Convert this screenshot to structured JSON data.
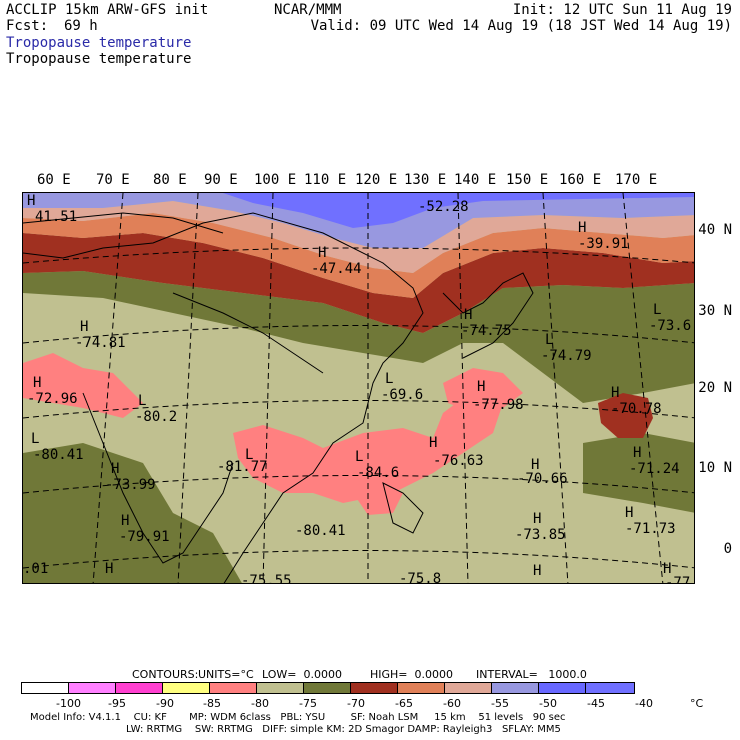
{
  "header": {
    "model": "ACCLIP 15km ARW-GFS init",
    "fcst_label": "Fcst:",
    "fcst_value": "69 h",
    "org": "NCAR/MMM",
    "init": "Init: 12 UTC Sun 11 Aug 19",
    "valid": "Valid: 09 UTC Wed 14 Aug 19 (18 JST Wed 14 Aug 19)",
    "field1": "Tropopause temperature",
    "field2": "Tropopause temperature"
  },
  "longitudes": [
    "60 E",
    "70 E",
    "80 E",
    "90 E",
    "100 E",
    "110 E",
    "120 E",
    "130 E",
    "140 E",
    "150 E",
    "160 E",
    "170 E"
  ],
  "latitudes": [
    "40 N",
    "30 N",
    "20 N",
    "10 N",
    "0"
  ],
  "labels": [
    {
      "id": "h1",
      "text": "H"
    },
    {
      "id": "v1",
      "text": "41.51"
    },
    {
      "id": "h2",
      "text": "H"
    },
    {
      "id": "v2",
      "text": "-47.44"
    },
    {
      "id": "v3",
      "text": "-52.28"
    },
    {
      "id": "h4",
      "text": "H"
    },
    {
      "id": "v4",
      "text": "-39.91"
    },
    {
      "id": "h5",
      "text": "H"
    },
    {
      "id": "v5",
      "text": "-74.81"
    },
    {
      "id": "h6",
      "text": "H"
    },
    {
      "id": "v6",
      "text": "-74.75"
    },
    {
      "id": "l7",
      "text": "L"
    },
    {
      "id": "v7",
      "text": "-74.79"
    },
    {
      "id": "l8",
      "text": "L"
    },
    {
      "id": "v8",
      "text": "-73.6"
    },
    {
      "id": "h9",
      "text": "H"
    },
    {
      "id": "v9",
      "text": "-72.96"
    },
    {
      "id": "l10",
      "text": "L"
    },
    {
      "id": "v10",
      "text": "-80.2"
    },
    {
      "id": "l11",
      "text": "L"
    },
    {
      "id": "v11",
      "text": "-69.6"
    },
    {
      "id": "h12",
      "text": "H"
    },
    {
      "id": "v12",
      "text": "-77.98"
    },
    {
      "id": "h13",
      "text": "H"
    },
    {
      "id": "v13",
      "text": "-70.78"
    },
    {
      "id": "l14",
      "text": "L"
    },
    {
      "id": "v14",
      "text": "-80.41"
    },
    {
      "id": "l15",
      "text": "L"
    },
    {
      "id": "v15",
      "text": "-81.77"
    },
    {
      "id": "l16",
      "text": "L"
    },
    {
      "id": "v16",
      "text": "-84.6"
    },
    {
      "id": "h17",
      "text": "H"
    },
    {
      "id": "v17",
      "text": "-76.63"
    },
    {
      "id": "h18",
      "text": "H"
    },
    {
      "id": "v18",
      "text": "-71.24"
    },
    {
      "id": "h19",
      "text": "H"
    },
    {
      "id": "v19",
      "text": "-73.99"
    },
    {
      "id": "h20",
      "text": "H"
    },
    {
      "id": "v20",
      "text": "-70.66"
    },
    {
      "id": "h21",
      "text": "H"
    },
    {
      "id": "v21",
      "text": "-79.91"
    },
    {
      "id": "v22",
      "text": "-80.41"
    },
    {
      "id": "h23",
      "text": "H"
    },
    {
      "id": "v23",
      "text": "-73.85"
    },
    {
      "id": "h24",
      "text": "H"
    },
    {
      "id": "v24",
      "text": "-71.73"
    },
    {
      "id": "v25",
      "text": ".01"
    },
    {
      "id": "v26",
      "text": "-75.55"
    },
    {
      "id": "v27",
      "text": "-75.8"
    },
    {
      "id": "h28",
      "text": "H"
    },
    {
      "id": "h29",
      "text": "H"
    },
    {
      "id": "h30",
      "text": "H"
    },
    {
      "id": "v31",
      "text": "-77"
    }
  ],
  "contours": {
    "contours_label": "CONTOURS:",
    "units": "UNITS=°C",
    "low": "LOW=  0.0000",
    "high": "HIGH=  0.0000",
    "interval": "INTERVAL=   1000.0"
  },
  "colorbar": {
    "colors": [
      "#ffffff",
      "#ff80ff",
      "#ff40d0",
      "#ffff80",
      "#ff8080",
      "#c0c090",
      "#707838",
      "#a03020",
      "#e08058",
      "#e0a898",
      "#9898e0",
      "#6868ff",
      "#7070ff"
    ],
    "ticks": [
      "-100",
      "-95",
      "-90",
      "-85",
      "-80",
      "-75",
      "-70",
      "-65",
      "-60",
      "-55",
      "-50",
      "-45",
      "-40"
    ],
    "unit": "°C"
  },
  "footer": {
    "line1": "Model Info: V4.1.1    CU: KF       MP: WDM 6class   PBL: YSU        SF: Noah LSM     15 km    51 levels   90 sec",
    "line2": "LW: RRTMG    SW: RRTMG   DIFF: simple KM: 2D Smagor DAMP: Rayleigh3   SFLAY: MM5"
  }
}
